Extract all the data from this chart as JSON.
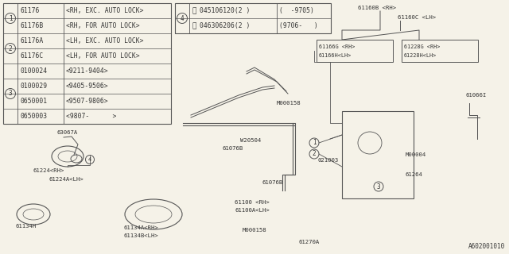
{
  "bg_color": "#f5f2e8",
  "line_color": "#555555",
  "text_color": "#333333",
  "part_code": "A602001010",
  "table_rows": [
    {
      "circle": "1",
      "part": "61176",
      "desc": "<RH, EXC. AUTO LOCK>"
    },
    {
      "circle": "1",
      "part": "61176B",
      "desc": "<RH, FOR AUTO LOCK>"
    },
    {
      "circle": "2",
      "part": "61176A",
      "desc": "<LH, EXC. AUTO LOCK>"
    },
    {
      "circle": "2",
      "part": "61176C",
      "desc": "<LH, FOR AUTO LOCK>"
    },
    {
      "circle": "3",
      "part": "0100024",
      "desc": "<9211-9404>"
    },
    {
      "circle": "3",
      "part": "0100029",
      "desc": "<9405-9506>"
    },
    {
      "circle": "3",
      "part": "0650001",
      "desc": "<9507-9806>"
    },
    {
      "circle": "3",
      "part": "0650003",
      "desc": "<9807-      >"
    }
  ],
  "c4_rows": [
    {
      "part": "045106120(2 )",
      "desc": "(  -9705)"
    },
    {
      "part": "046306206(2 )",
      "desc": "(9706-   )"
    }
  ],
  "fs_table": 5.8,
  "fs_label": 5.2
}
